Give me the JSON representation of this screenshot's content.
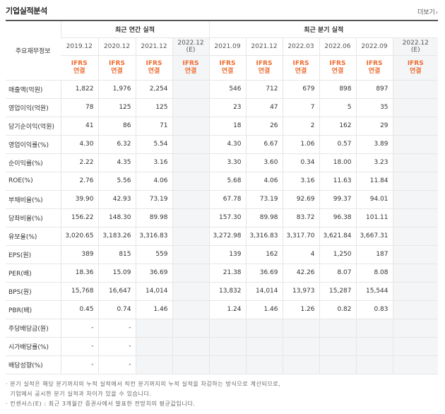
{
  "header": {
    "title": "기업실적분석",
    "more_label": "더보기",
    "more_icon": "chevron-right-icon"
  },
  "table": {
    "row_header_label": "주요재무정보",
    "annual_group_label": "최근 연간 실적",
    "quarterly_group_label": "최근 분기 실적",
    "periods": [
      {
        "label": "2019.12",
        "estimate": false,
        "tag1": "IFRS",
        "tag2": "연결"
      },
      {
        "label": "2020.12",
        "estimate": false,
        "tag1": "IFRS",
        "tag2": "연결"
      },
      {
        "label": "2021.12",
        "estimate": false,
        "tag1": "IFRS",
        "tag2": "연결"
      },
      {
        "label": "2022.12",
        "sublabel": "(E)",
        "estimate": true,
        "tag1": "IFRS",
        "tag2": "연결"
      },
      {
        "label": "2021.09",
        "estimate": false,
        "tag1": "IFRS",
        "tag2": "연결"
      },
      {
        "label": "2021.12",
        "estimate": false,
        "tag1": "IFRS",
        "tag2": "연결"
      },
      {
        "label": "2022.03",
        "estimate": false,
        "tag1": "IFRS",
        "tag2": "연결"
      },
      {
        "label": "2022.06",
        "estimate": false,
        "tag1": "IFRS",
        "tag2": "연결"
      },
      {
        "label": "2022.09",
        "estimate": false,
        "tag1": "IFRS",
        "tag2": "연결"
      },
      {
        "label": "2022.12",
        "sublabel": "(E)",
        "estimate": true,
        "tag1": "IFRS",
        "tag2": "연결"
      }
    ],
    "rows": [
      {
        "label": "매출액(억원)",
        "values": [
          "1,822",
          "1,976",
          "2,254",
          "",
          "546",
          "712",
          "679",
          "898",
          "897",
          ""
        ]
      },
      {
        "label": "영업이익(억원)",
        "values": [
          "78",
          "125",
          "125",
          "",
          "23",
          "47",
          "7",
          "5",
          "35",
          ""
        ]
      },
      {
        "label": "당기순이익(억원)",
        "values": [
          "41",
          "86",
          "71",
          "",
          "18",
          "26",
          "2",
          "162",
          "29",
          ""
        ]
      },
      {
        "label": "영업이익률(%)",
        "values": [
          "4.30",
          "6.32",
          "5.54",
          "",
          "4.30",
          "6.67",
          "1.06",
          "0.57",
          "3.89",
          ""
        ]
      },
      {
        "label": "순이익률(%)",
        "values": [
          "2.22",
          "4.35",
          "3.16",
          "",
          "3.30",
          "3.60",
          "0.34",
          "18.00",
          "3.23",
          ""
        ]
      },
      {
        "label": "ROE(%)",
        "values": [
          "2.76",
          "5.56",
          "4.06",
          "",
          "5.68",
          "4.06",
          "3.16",
          "11.63",
          "11.84",
          ""
        ]
      },
      {
        "label": "부채비율(%)",
        "values": [
          "39.90",
          "42.93",
          "73.19",
          "",
          "67.78",
          "73.19",
          "92.69",
          "99.37",
          "94.01",
          ""
        ]
      },
      {
        "label": "당좌비율(%)",
        "values": [
          "156.22",
          "148.30",
          "89.98",
          "",
          "157.30",
          "89.98",
          "83.72",
          "96.38",
          "101.11",
          ""
        ]
      },
      {
        "label": "유보율(%)",
        "values": [
          "3,020.65",
          "3,183.26",
          "3,316.83",
          "",
          "3,272.98",
          "3,316.83",
          "3,317.70",
          "3,621.84",
          "3,667.31",
          ""
        ]
      },
      {
        "label": "EPS(원)",
        "values": [
          "389",
          "815",
          "559",
          "",
          "139",
          "162",
          "4",
          "1,250",
          "187",
          ""
        ]
      },
      {
        "label": "PER(배)",
        "values": [
          "18.36",
          "15.09",
          "36.69",
          "",
          "21.38",
          "36.69",
          "42.26",
          "8.07",
          "8.08",
          ""
        ]
      },
      {
        "label": "BPS(원)",
        "values": [
          "15,768",
          "16,647",
          "14,014",
          "",
          "13,832",
          "14,014",
          "13,973",
          "15,287",
          "15,544",
          ""
        ]
      },
      {
        "label": "PBR(배)",
        "values": [
          "0.45",
          "0.74",
          "1.46",
          "",
          "1.24",
          "1.46",
          "1.26",
          "0.82",
          "0.83",
          ""
        ]
      },
      {
        "label": "주당배당금(원)",
        "values": [
          "-",
          "-",
          "",
          "",
          "",
          "",
          "",
          "",
          "",
          ""
        ]
      },
      {
        "label": "시가배당률(%)",
        "values": [
          "-",
          "-",
          "",
          "",
          "",
          "",
          "",
          "",
          "",
          ""
        ]
      },
      {
        "label": "배당성향(%)",
        "values": [
          "-",
          "-",
          "",
          "",
          "",
          "",
          "",
          "",
          "",
          ""
        ]
      }
    ]
  },
  "notes": [
    "· 분기 실적은 해당 분기까지의 누적 실적에서 직전 분기까지의 누적 실적을 차감하는 방식으로 계산되므로,",
    "  기업에서 공시한 분기 실적과 차이가 있을 수 있습니다.",
    "· 컨센서스(E) : 최근 3개월간 증권사에서 발표한 전망치의 평균값입니다."
  ],
  "colors": {
    "ifrs_tag": "#ee6b2f",
    "estimate_column_bg": "#f4f5f7",
    "header_border": "#555555"
  }
}
